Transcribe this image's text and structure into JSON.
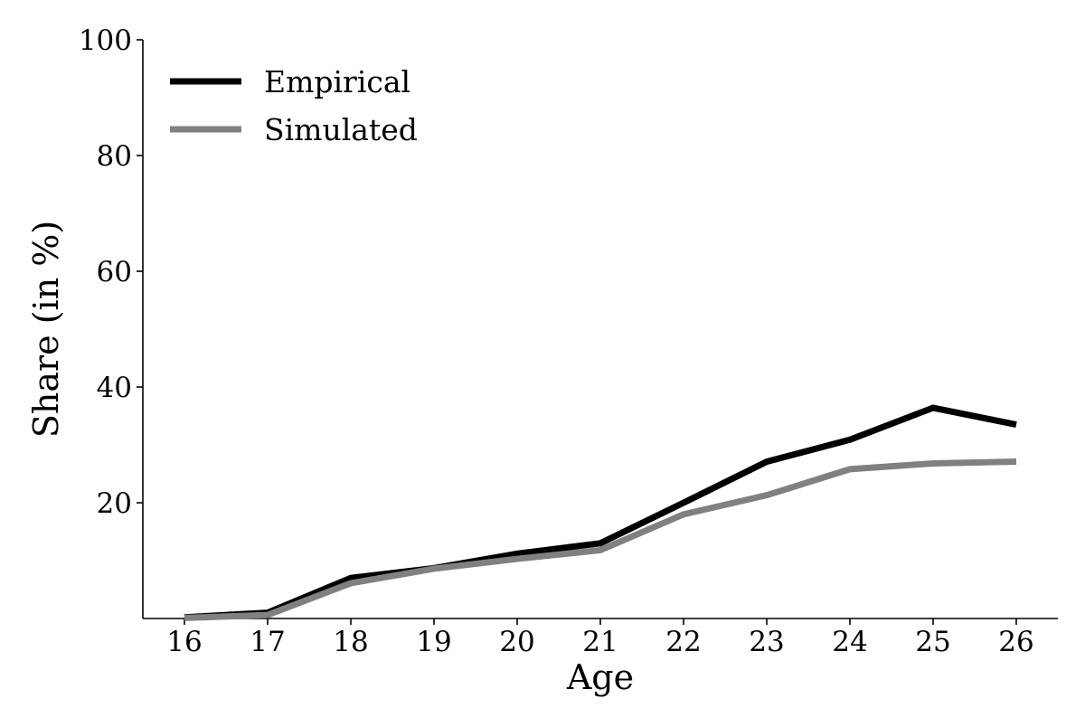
{
  "chart_data": {
    "type": "line",
    "title": "",
    "xlabel": "Age",
    "ylabel": "Share (in %)",
    "x": [
      16,
      17,
      18,
      19,
      20,
      21,
      22,
      23,
      24,
      25,
      26
    ],
    "xticks": [
      "16",
      "17",
      "18",
      "19",
      "20",
      "21",
      "22",
      "23",
      "24",
      "25",
      "26"
    ],
    "xlim": [
      15.5,
      26.5
    ],
    "ylim": [
      0,
      100
    ],
    "yticks": [
      20,
      40,
      60,
      80,
      100
    ],
    "ytick_labels": [
      "20",
      "40",
      "60",
      "80",
      "100"
    ],
    "grid": false,
    "legend_position": "top-left",
    "series": [
      {
        "name": "Empirical",
        "color": "#000000",
        "values": [
          0.2,
          1.0,
          7.0,
          8.7,
          11.2,
          13.0,
          20.0,
          27.1,
          30.9,
          36.4,
          33.5
        ]
      },
      {
        "name": "Simulated",
        "color": "#808080",
        "values": [
          0.1,
          0.6,
          6.1,
          8.6,
          10.3,
          11.8,
          18.0,
          21.3,
          25.8,
          26.8,
          27.1
        ]
      }
    ]
  }
}
